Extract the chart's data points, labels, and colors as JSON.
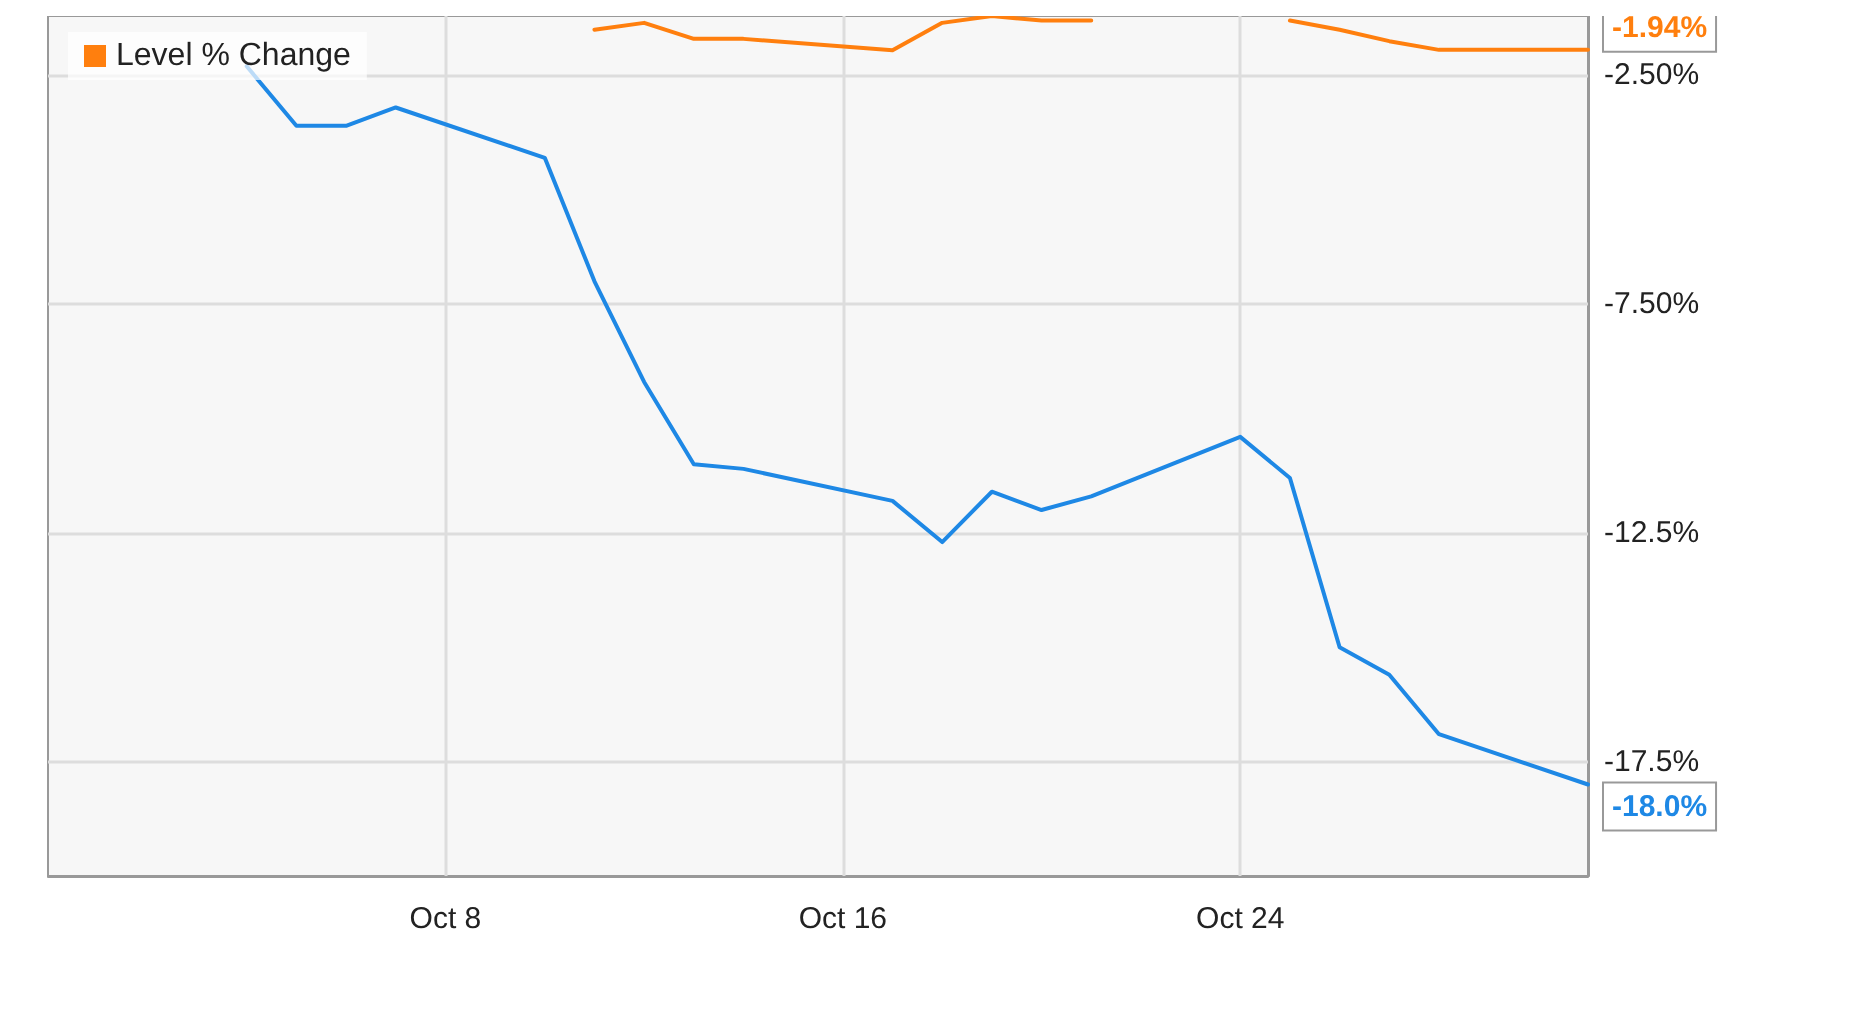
{
  "chart_data": {
    "type": "line",
    "x": [
      "--10-04",
      "--10-05",
      "--10-06",
      "--10-07",
      "--10-10",
      "--10-11",
      "--10-12",
      "--10-13",
      "--10-14",
      "--10-17",
      "--10-18",
      "--10-19",
      "--10-20",
      "--10-21",
      "--10-24",
      "--10-25",
      "--10-26",
      "--10-27",
      "--10-28",
      "--10-31"
    ],
    "series": [
      {
        "color": "#1e88e5",
        "values": [
          -2.3,
          -3.6,
          -3.6,
          -3.2,
          -4.3,
          -7.0,
          -9.2,
          -11.0,
          -11.1,
          -11.8,
          -12.7,
          -11.6,
          -12.0,
          -11.7,
          -10.4,
          -11.3,
          -15.0,
          -15.6,
          -16.9,
          -18.0
        ],
        "value_labels": [
          null,
          null,
          null,
          null,
          null,
          null,
          null,
          null,
          null,
          null,
          null,
          null,
          null,
          null,
          null,
          null,
          null,
          null,
          null,
          "-18.0%"
        ]
      },
      {
        "name": "Level % Change",
        "color": "#ff7f0e",
        "values": [
          null,
          null,
          null,
          null,
          null,
          -1.5,
          -1.35,
          -1.7,
          -1.7,
          -1.95,
          -1.35,
          -1.2,
          -1.3,
          -1.3,
          null,
          -1.3,
          -1.5,
          -1.75,
          -1.94,
          -1.94
        ],
        "value_labels": [
          null,
          null,
          null,
          null,
          null,
          null,
          null,
          null,
          null,
          null,
          null,
          null,
          null,
          null,
          null,
          null,
          null,
          null,
          null,
          "-1.94%"
        ]
      }
    ],
    "xlim": [
      "--09-30",
      "--10-31"
    ],
    "xticks": [
      {
        "value": "--10-08",
        "label": "Oct 8"
      },
      {
        "value": "--10-16",
        "label": "Oct 16"
      },
      {
        "value": "--10-24",
        "label": "Oct 24"
      }
    ],
    "ylim": [
      -20,
      -1.2
    ],
    "yticks": [
      {
        "value": -2.5,
        "label": "-2.50%"
      },
      {
        "value": -7.5,
        "label": "-7.50%"
      },
      {
        "value": -12.5,
        "label": "-12.5%"
      },
      {
        "value": -17.5,
        "label": "-17.5%"
      }
    ],
    "grid": true,
    "legend": "top left",
    "marker": "none",
    "line_style": "solid"
  }
}
